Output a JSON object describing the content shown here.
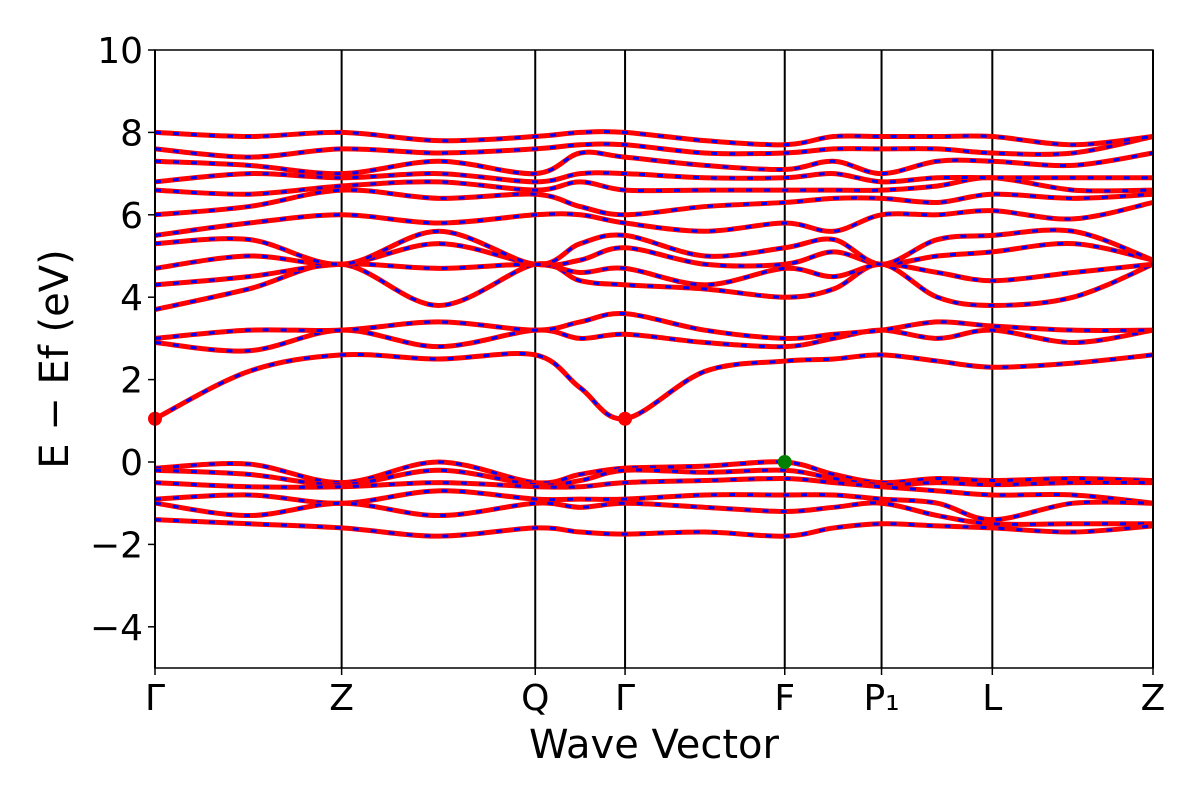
{
  "chart_data": {
    "type": "band-structure",
    "xlabel": "Wave Vector",
    "ylabel": "E − Ef (eV)",
    "xlim": [
      0,
      1
    ],
    "ylim": [
      -5,
      10
    ],
    "yticks": [
      {
        "value": -4,
        "label": "−4"
      },
      {
        "value": -2,
        "label": "−2"
      },
      0,
      2,
      4,
      6,
      8,
      10
    ],
    "xticks": [
      {
        "value": 0,
        "label": "Γ"
      },
      {
        "value": 0.187,
        "label": "Z"
      },
      {
        "value": 0.381,
        "label": "Q"
      },
      {
        "value": 0.471,
        "label": "Γ"
      },
      {
        "value": 0.631,
        "label": "F"
      },
      {
        "value": 0.728,
        "label": "P₁"
      },
      {
        "value": 0.839,
        "label": "L"
      },
      {
        "value": 1,
        "label": "Z"
      }
    ],
    "x": [
      0,
      0.094,
      0.187,
      0.284,
      0.381,
      0.426,
      0.471,
      0.551,
      0.631,
      0.68,
      0.728,
      0.784,
      0.839,
      0.92,
      1
    ],
    "color": "#ff0000",
    "dash_color": "#0000ff",
    "bands": [
      [
        -0.15,
        -0.05,
        -0.5,
        0.0,
        -0.5,
        -0.3,
        -0.15,
        -0.1,
        0.0,
        -0.3,
        -0.5,
        -0.4,
        -0.45,
        -0.4,
        -0.45
      ],
      [
        -0.2,
        -0.3,
        -0.55,
        -0.2,
        -0.55,
        -0.45,
        -0.2,
        -0.25,
        -0.2,
        -0.4,
        -0.55,
        -0.5,
        -0.55,
        -0.5,
        -0.5
      ],
      [
        -0.5,
        -0.6,
        -0.6,
        -0.5,
        -0.6,
        -0.6,
        -0.5,
        -0.45,
        -0.4,
        -0.5,
        -0.6,
        -0.7,
        -0.8,
        -0.8,
        -1.0
      ],
      [
        -0.9,
        -0.8,
        -1.0,
        -0.7,
        -0.9,
        -0.9,
        -0.9,
        -0.8,
        -0.8,
        -0.8,
        -0.9,
        -1.0,
        -1.4,
        -1.0,
        -1.0
      ],
      [
        -1.0,
        -1.3,
        -1.0,
        -1.3,
        -1.0,
        -1.1,
        -1.0,
        -1.1,
        -1.2,
        -1.1,
        -1.0,
        -1.3,
        -1.5,
        -1.5,
        -1.5
      ],
      [
        -1.4,
        -1.5,
        -1.6,
        -1.8,
        -1.6,
        -1.7,
        -1.75,
        -1.7,
        -1.8,
        -1.6,
        -1.5,
        -1.55,
        -1.6,
        -1.7,
        -1.55
      ],
      [
        1.05,
        2.2,
        2.6,
        2.5,
        2.6,
        1.8,
        1.05,
        2.2,
        2.45,
        2.5,
        2.6,
        2.45,
        2.3,
        2.4,
        2.6
      ],
      [
        2.9,
        2.7,
        3.2,
        2.8,
        3.2,
        3.0,
        3.1,
        2.9,
        2.8,
        3.0,
        3.2,
        3.0,
        3.2,
        2.9,
        3.2
      ],
      [
        3.0,
        3.2,
        3.2,
        3.4,
        3.2,
        3.4,
        3.6,
        3.2,
        3.0,
        3.1,
        3.2,
        3.4,
        3.3,
        3.2,
        3.2
      ],
      [
        3.7,
        4.2,
        4.8,
        3.8,
        4.8,
        4.4,
        4.3,
        4.2,
        4.0,
        4.2,
        4.8,
        4.0,
        3.8,
        4.0,
        4.8
      ],
      [
        4.3,
        4.5,
        4.8,
        4.7,
        4.8,
        4.6,
        4.7,
        4.3,
        4.7,
        4.5,
        4.8,
        4.6,
        4.4,
        4.6,
        4.8
      ],
      [
        4.7,
        5.0,
        4.8,
        5.3,
        4.8,
        4.9,
        5.2,
        4.8,
        4.8,
        5.1,
        4.8,
        5.0,
        5.1,
        5.3,
        4.9
      ],
      [
        5.3,
        5.4,
        4.8,
        5.6,
        4.8,
        5.3,
        5.5,
        5.0,
        5.2,
        5.4,
        4.8,
        5.4,
        5.5,
        5.6,
        4.9
      ],
      [
        5.5,
        5.8,
        6.0,
        5.8,
        6.0,
        6.0,
        5.8,
        5.6,
        5.8,
        5.6,
        6.0,
        6.0,
        6.1,
        5.9,
        6.3
      ],
      [
        6.0,
        6.2,
        6.6,
        6.4,
        6.5,
        6.2,
        6.0,
        6.2,
        6.3,
        6.4,
        6.4,
        6.3,
        6.5,
        6.4,
        6.5
      ],
      [
        6.6,
        6.5,
        6.7,
        6.8,
        6.6,
        6.8,
        6.6,
        6.6,
        6.6,
        6.6,
        6.6,
        6.7,
        6.9,
        6.6,
        6.6
      ],
      [
        6.8,
        7.0,
        6.9,
        7.0,
        6.8,
        7.0,
        7.0,
        6.9,
        6.9,
        7.0,
        6.8,
        6.9,
        6.9,
        6.9,
        6.9
      ],
      [
        7.3,
        7.2,
        7.0,
        7.3,
        7.0,
        7.5,
        7.4,
        7.2,
        7.1,
        7.3,
        7.0,
        7.3,
        7.3,
        7.2,
        7.5
      ],
      [
        7.6,
        7.4,
        7.6,
        7.5,
        7.6,
        7.7,
        7.7,
        7.5,
        7.5,
        7.6,
        7.6,
        7.6,
        7.5,
        7.5,
        7.9
      ],
      [
        8.0,
        7.9,
        8.0,
        7.8,
        7.9,
        8.0,
        8.0,
        7.8,
        7.7,
        7.9,
        7.9,
        7.9,
        7.9,
        7.7,
        7.9
      ]
    ],
    "cbm": {
      "color": "#ff0000",
      "x": [
        0,
        0.471
      ],
      "y": [
        1.05,
        1.05
      ]
    },
    "vbm": {
      "color": "#008000",
      "x": [
        0.631
      ],
      "y": [
        0
      ]
    }
  }
}
